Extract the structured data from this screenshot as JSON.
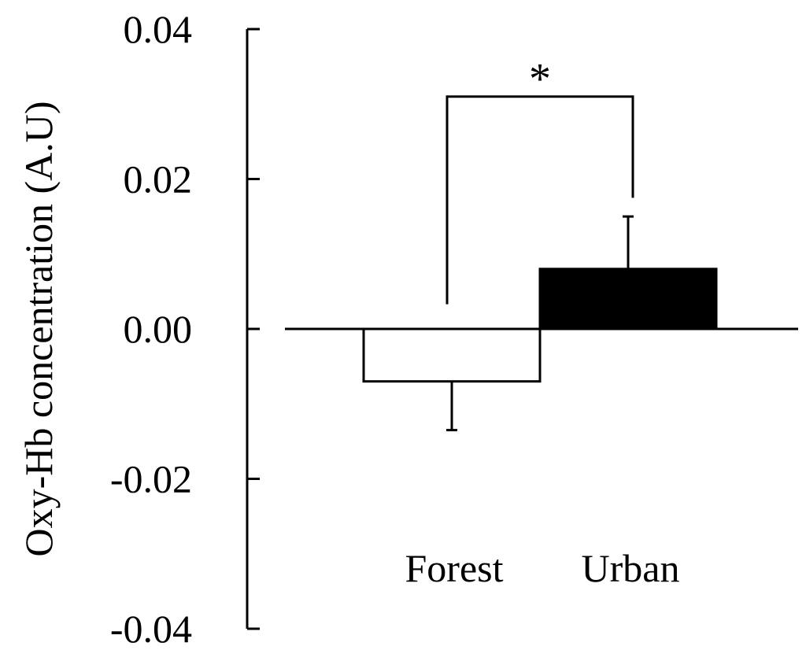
{
  "chart_data": {
    "type": "bar",
    "title": "",
    "xlabel": "",
    "ylabel": "Oxy-Hb concentration (A.U)",
    "ylim": [
      -0.04,
      0.04
    ],
    "yticks": [
      0.04,
      0.02,
      0.0,
      -0.02,
      -0.04
    ],
    "ytick_labels": [
      "0.04",
      "0.02",
      "0.00",
      "-0.02",
      "-0.04"
    ],
    "categories": [
      "Forest",
      "Urban"
    ],
    "values": [
      -0.007,
      0.008
    ],
    "errors": [
      0.0065,
      0.007
    ],
    "error_direction": [
      "down",
      "up"
    ],
    "bar_fill": [
      "#ffffff",
      "#000000"
    ],
    "bar_stroke": "#000000",
    "significance": {
      "between": [
        "Forest",
        "Urban"
      ],
      "label": "*",
      "level": 0.031
    },
    "grid": false,
    "legend": "none"
  }
}
